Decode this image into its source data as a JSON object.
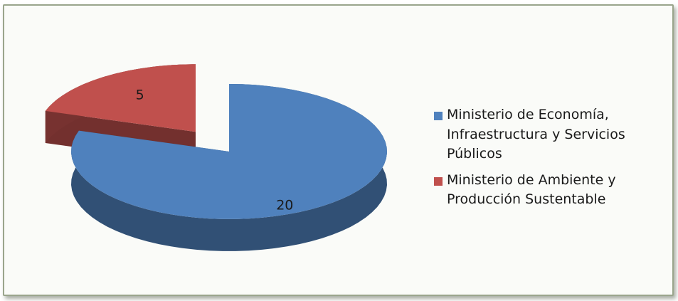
{
  "chart_data": {
    "type": "pie",
    "categories": [
      "Ministerio de Economía, Infraestructura y Servicios Públicos",
      "Ministerio de Ambiente y Producción Sustentable"
    ],
    "values": [
      20,
      5
    ],
    "colors": [
      "#4f81bd",
      "#c0504d"
    ],
    "legend": "right"
  }
}
